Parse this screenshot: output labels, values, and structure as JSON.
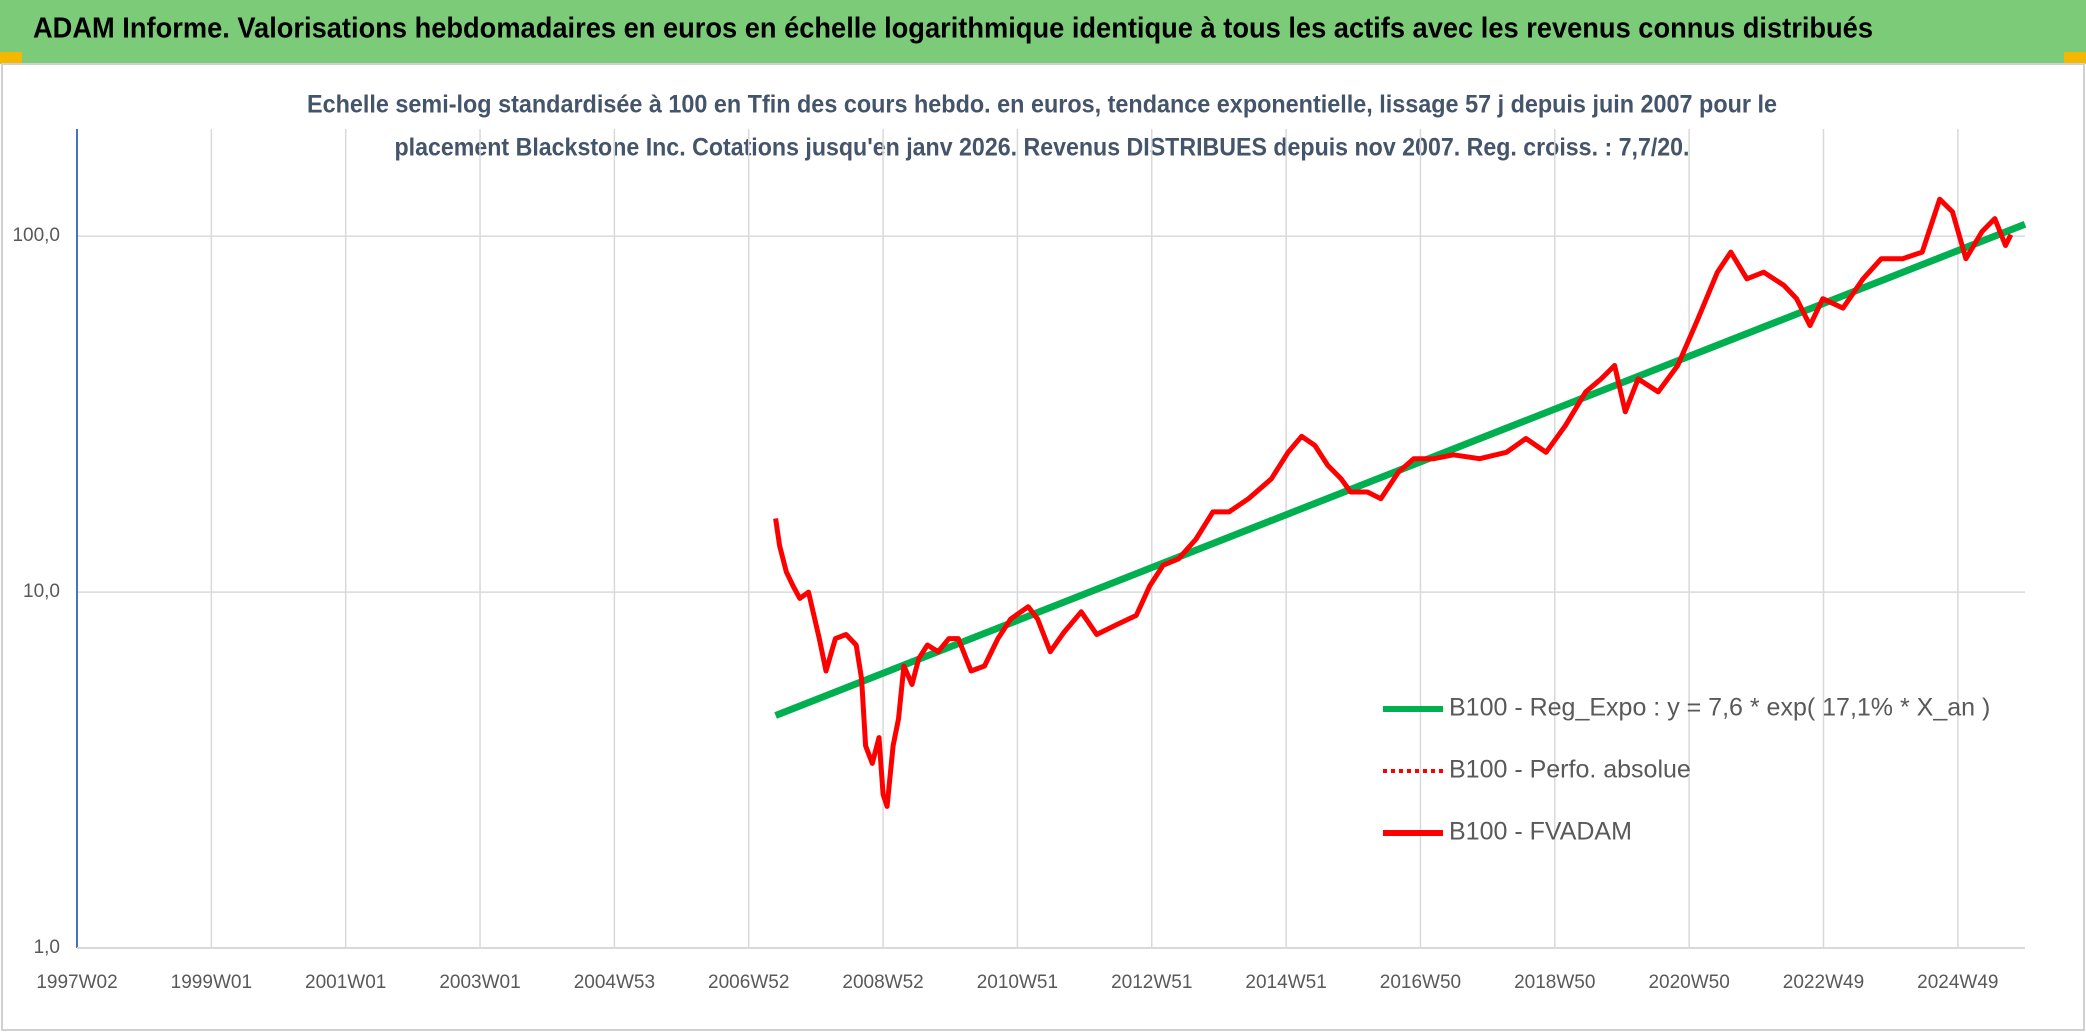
{
  "header": {
    "title": "ADAM Informe. Valorisations hebdomadaires en euros en échelle logarithmique identique à tous les actifs avec les revenus connus distribués"
  },
  "chart_data": {
    "type": "line",
    "subtitle": [
      "Echelle semi-log standardisée à 100 en Tfin des cours hebdo. en euros, tendance exponentielle, lissage 57 j depuis juin 2007 pour le",
      "placement Blackstone Inc. Cotations jusqu'en janv 2026. Revenus DISTRIBUES depuis nov 2007. Reg. croiss. : 7,7/20."
    ],
    "xlim": [
      1997,
      2026
    ],
    "xticks": [
      {
        "value": 1997,
        "label": "1997W02"
      },
      {
        "value": 1999,
        "label": "1999W01"
      },
      {
        "value": 2001,
        "label": "2001W01"
      },
      {
        "value": 2003,
        "label": "2003W01"
      },
      {
        "value": 2005,
        "label": "2004W53"
      },
      {
        "value": 2007,
        "label": "2006W52"
      },
      {
        "value": 2009,
        "label": "2008W52"
      },
      {
        "value": 2011,
        "label": "2010W51"
      },
      {
        "value": 2013,
        "label": "2012W51"
      },
      {
        "value": 2015,
        "label": "2014W51"
      },
      {
        "value": 2017,
        "label": "2016W50"
      },
      {
        "value": 2019,
        "label": "2018W50"
      },
      {
        "value": 2021,
        "label": "2020W50"
      },
      {
        "value": 2023,
        "label": "2022W49"
      },
      {
        "value": 2025,
        "label": "2024W49"
      }
    ],
    "ylim": [
      1,
      200
    ],
    "yticks": [
      {
        "value": 1,
        "label": "1,0"
      },
      {
        "value": 10,
        "label": "10,0"
      },
      {
        "value": 100,
        "label": "100,0"
      }
    ],
    "log_y": true,
    "grid": true,
    "legend": "right",
    "series": [
      {
        "name": "B100 - Reg_Expo : y = 7,6 * exp( 17,1% *  X_an )",
        "color": "#00b050",
        "x": [
          2007.4,
          2026.0
        ],
        "values": [
          4.5,
          108
        ]
      },
      {
        "name": "B100 - Perfo. absolue",
        "color": "#ff0000",
        "dash": "dotted"
      },
      {
        "name": "B100 - FVADAM",
        "color": "#ff0000",
        "x": [
          2007.4,
          2007.46,
          2007.56,
          2007.66,
          2007.76,
          2007.89,
          2008.05,
          2008.15,
          2008.29,
          2008.45,
          2008.6,
          2008.68,
          2008.74,
          2008.84,
          2008.94,
          2009.0,
          2009.06,
          2009.15,
          2009.23,
          2009.31,
          2009.43,
          2009.53,
          2009.66,
          2009.82,
          2009.98,
          2010.12,
          2010.31,
          2010.51,
          2010.71,
          2010.9,
          2011.16,
          2011.3,
          2011.49,
          2011.69,
          2011.95,
          2012.18,
          2012.48,
          2012.77,
          2012.97,
          2013.17,
          2013.4,
          2013.66,
          2013.91,
          2014.15,
          2014.44,
          2014.78,
          2015.03,
          2015.23,
          2015.43,
          2015.62,
          2015.82,
          2015.96,
          2016.21,
          2016.41,
          2016.67,
          2016.9,
          2017.2,
          2017.49,
          2017.88,
          2018.28,
          2018.57,
          2018.87,
          2019.16,
          2019.46,
          2019.69,
          2019.89,
          2020.05,
          2020.24,
          2020.54,
          2020.83,
          2021.13,
          2021.42,
          2021.62,
          2021.86,
          2022.11,
          2022.41,
          2022.6,
          2022.8,
          2022.99,
          2023.29,
          2023.59,
          2023.86,
          2024.18,
          2024.47,
          2024.73,
          2024.92,
          2025.12,
          2025.36,
          2025.55,
          2025.71,
          2025.79
        ],
        "values": [
          16.1,
          13.5,
          11.4,
          10.4,
          9.6,
          10,
          7.4,
          6.0,
          7.4,
          7.6,
          7.1,
          5.7,
          3.7,
          3.3,
          3.9,
          2.7,
          2.5,
          3.7,
          4.4,
          6.2,
          5.5,
          6.5,
          7.1,
          6.8,
          7.4,
          7.4,
          6.0,
          6.2,
          7.4,
          8.4,
          9.1,
          8.4,
          6.8,
          7.7,
          8.8,
          7.6,
          8.1,
          8.6,
          10.4,
          11.9,
          12.4,
          14.1,
          16.8,
          16.8,
          18.3,
          20.8,
          24.7,
          27.4,
          25.8,
          22.7,
          20.8,
          19.1,
          19.1,
          18.3,
          21.7,
          23.7,
          23.7,
          24.3,
          23.7,
          24.7,
          27.0,
          24.7,
          29.4,
          36.5,
          39.7,
          43.3,
          32.1,
          39.7,
          36.5,
          43.3,
          58.5,
          79.2,
          90.2,
          75.9,
          79.2,
          72.7,
          66.7,
          56.1,
          66.7,
          62.8,
          75.9,
          86.4,
          86.4,
          90.2,
          127,
          117,
          86.4,
          103,
          112,
          94.1,
          101
        ]
      }
    ]
  }
}
